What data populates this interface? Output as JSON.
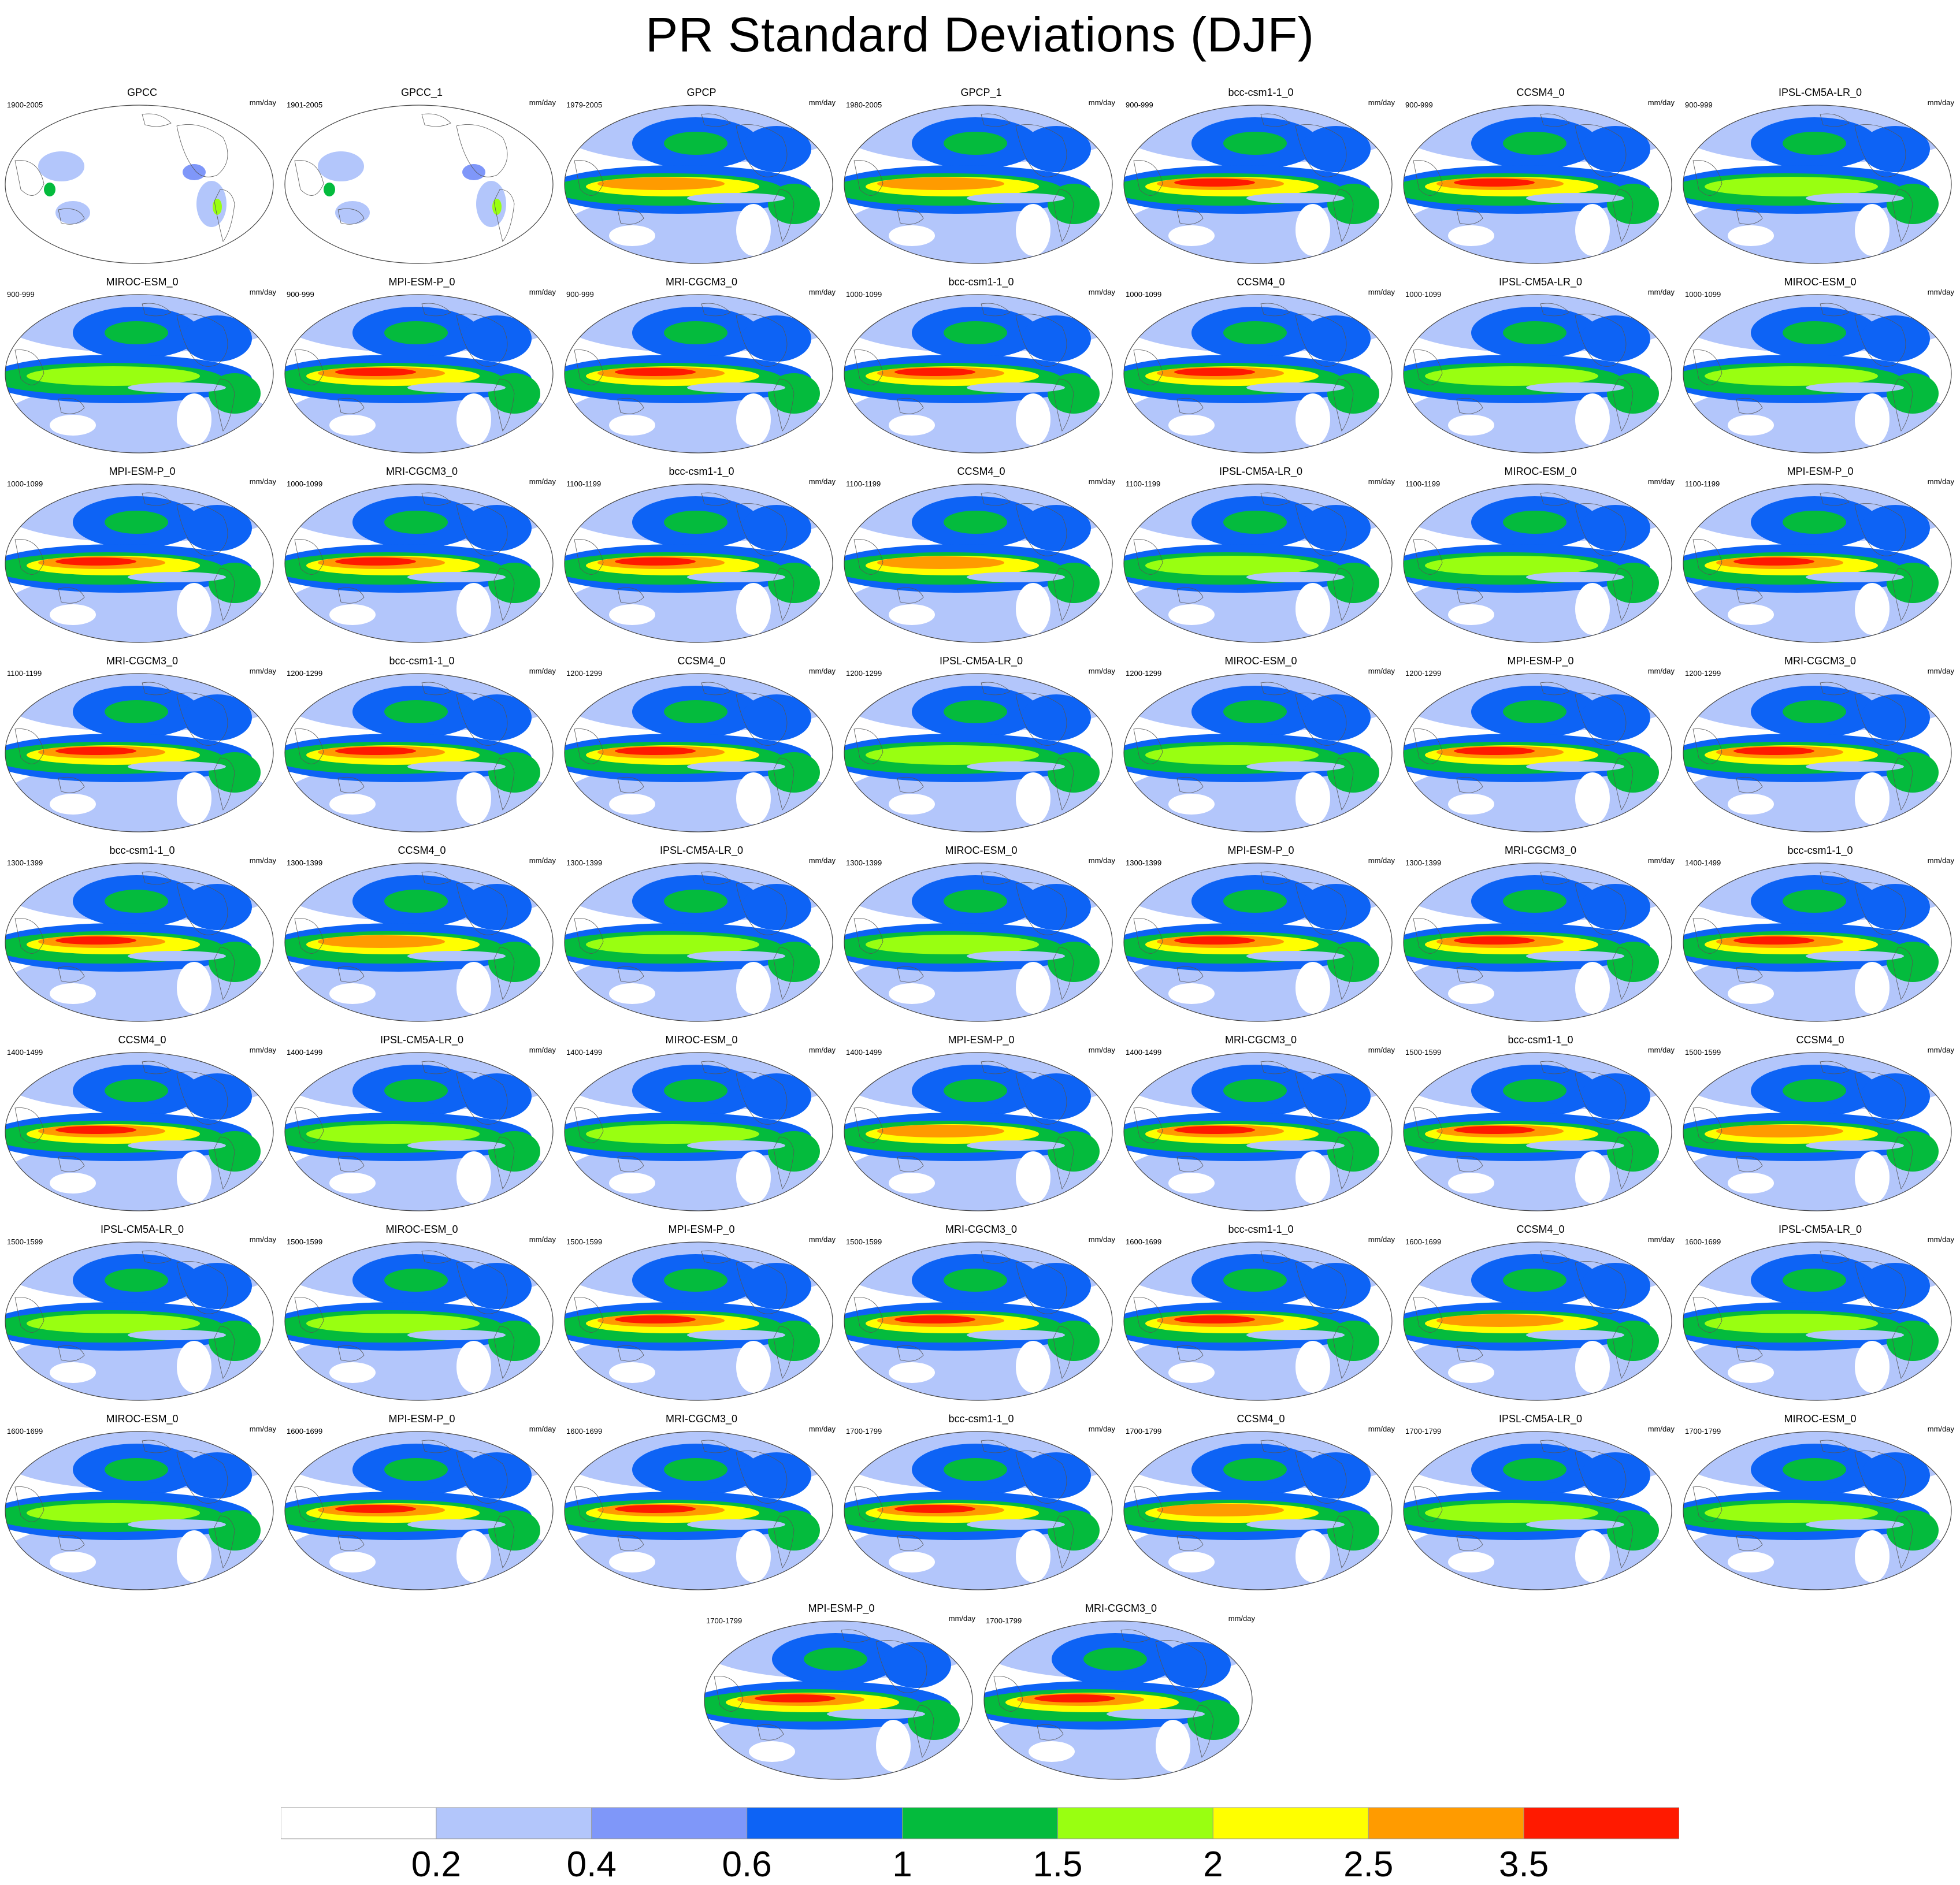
{
  "title": "PR Standard Deviations (DJF)",
  "panels": [
    {
      "name": "GPCC",
      "period": "1900-2005",
      "units": "mm/day",
      "intensity": 0,
      "obs": true
    },
    {
      "name": "GPCC_1",
      "period": "1901-2005",
      "units": "mm/day",
      "intensity": 0,
      "obs": true
    },
    {
      "name": "GPCP",
      "period": "1979-2005",
      "units": "mm/day",
      "intensity": 2
    },
    {
      "name": "GPCP_1",
      "period": "1980-2005",
      "units": "mm/day",
      "intensity": 2
    },
    {
      "name": "bcc-csm1-1_0",
      "period": "900-999",
      "units": "mm/day",
      "intensity": 3
    },
    {
      "name": "CCSM4_0",
      "period": "900-999",
      "units": "mm/day",
      "intensity": 3
    },
    {
      "name": "IPSL-CM5A-LR_0",
      "period": "900-999",
      "units": "mm/day",
      "intensity": 1
    },
    {
      "name": "MIROC-ESM_0",
      "period": "900-999",
      "units": "mm/day",
      "intensity": 1
    },
    {
      "name": "MPI-ESM-P_0",
      "period": "900-999",
      "units": "mm/day",
      "intensity": 3
    },
    {
      "name": "MRI-CGCM3_0",
      "period": "900-999",
      "units": "mm/day",
      "intensity": 3
    },
    {
      "name": "bcc-csm1-1_0",
      "period": "1000-1099",
      "units": "mm/day",
      "intensity": 3
    },
    {
      "name": "CCSM4_0",
      "period": "1000-1099",
      "units": "mm/day",
      "intensity": 3
    },
    {
      "name": "IPSL-CM5A-LR_0",
      "period": "1000-1099",
      "units": "mm/day",
      "intensity": 1
    },
    {
      "name": "MIROC-ESM_0",
      "period": "1000-1099",
      "units": "mm/day",
      "intensity": 1
    },
    {
      "name": "MPI-ESM-P_0",
      "period": "1000-1099",
      "units": "mm/day",
      "intensity": 3
    },
    {
      "name": "MRI-CGCM3_0",
      "period": "1000-1099",
      "units": "mm/day",
      "intensity": 3
    },
    {
      "name": "bcc-csm1-1_0",
      "period": "1100-1199",
      "units": "mm/day",
      "intensity": 3
    },
    {
      "name": "CCSM4_0",
      "period": "1100-1199",
      "units": "mm/day",
      "intensity": 2
    },
    {
      "name": "IPSL-CM5A-LR_0",
      "period": "1100-1199",
      "units": "mm/day",
      "intensity": 1
    },
    {
      "name": "MIROC-ESM_0",
      "period": "1100-1199",
      "units": "mm/day",
      "intensity": 1
    },
    {
      "name": "MPI-ESM-P_0",
      "period": "1100-1199",
      "units": "mm/day",
      "intensity": 3
    },
    {
      "name": "MRI-CGCM3_0",
      "period": "1100-1199",
      "units": "mm/day",
      "intensity": 3
    },
    {
      "name": "bcc-csm1-1_0",
      "period": "1200-1299",
      "units": "mm/day",
      "intensity": 3
    },
    {
      "name": "CCSM4_0",
      "period": "1200-1299",
      "units": "mm/day",
      "intensity": 3
    },
    {
      "name": "IPSL-CM5A-LR_0",
      "period": "1200-1299",
      "units": "mm/day",
      "intensity": 1
    },
    {
      "name": "MIROC-ESM_0",
      "period": "1200-1299",
      "units": "mm/day",
      "intensity": 1
    },
    {
      "name": "MPI-ESM-P_0",
      "period": "1200-1299",
      "units": "mm/day",
      "intensity": 3
    },
    {
      "name": "MRI-CGCM3_0",
      "period": "1200-1299",
      "units": "mm/day",
      "intensity": 3
    },
    {
      "name": "bcc-csm1-1_0",
      "period": "1300-1399",
      "units": "mm/day",
      "intensity": 3
    },
    {
      "name": "CCSM4_0",
      "period": "1300-1399",
      "units": "mm/day",
      "intensity": 2
    },
    {
      "name": "IPSL-CM5A-LR_0",
      "period": "1300-1399",
      "units": "mm/day",
      "intensity": 1
    },
    {
      "name": "MIROC-ESM_0",
      "period": "1300-1399",
      "units": "mm/day",
      "intensity": 1
    },
    {
      "name": "MPI-ESM-P_0",
      "period": "1300-1399",
      "units": "mm/day",
      "intensity": 3
    },
    {
      "name": "MRI-CGCM3_0",
      "period": "1300-1399",
      "units": "mm/day",
      "intensity": 3
    },
    {
      "name": "bcc-csm1-1_0",
      "period": "1400-1499",
      "units": "mm/day",
      "intensity": 3
    },
    {
      "name": "CCSM4_0",
      "period": "1400-1499",
      "units": "mm/day",
      "intensity": 3
    },
    {
      "name": "IPSL-CM5A-LR_0",
      "period": "1400-1499",
      "units": "mm/day",
      "intensity": 1
    },
    {
      "name": "MIROC-ESM_0",
      "period": "1400-1499",
      "units": "mm/day",
      "intensity": 1
    },
    {
      "name": "MPI-ESM-P_0",
      "period": "1400-1499",
      "units": "mm/day",
      "intensity": 2
    },
    {
      "name": "MRI-CGCM3_0",
      "period": "1400-1499",
      "units": "mm/day",
      "intensity": 3
    },
    {
      "name": "bcc-csm1-1_0",
      "period": "1500-1599",
      "units": "mm/day",
      "intensity": 3
    },
    {
      "name": "CCSM4_0",
      "period": "1500-1599",
      "units": "mm/day",
      "intensity": 2
    },
    {
      "name": "IPSL-CM5A-LR_0",
      "period": "1500-1599",
      "units": "mm/day",
      "intensity": 1
    },
    {
      "name": "MIROC-ESM_0",
      "period": "1500-1599",
      "units": "mm/day",
      "intensity": 1
    },
    {
      "name": "MPI-ESM-P_0",
      "period": "1500-1599",
      "units": "mm/day",
      "intensity": 3
    },
    {
      "name": "MRI-CGCM3_0",
      "period": "1500-1599",
      "units": "mm/day",
      "intensity": 3
    },
    {
      "name": "bcc-csm1-1_0",
      "period": "1600-1699",
      "units": "mm/day",
      "intensity": 3
    },
    {
      "name": "CCSM4_0",
      "period": "1600-1699",
      "units": "mm/day",
      "intensity": 2
    },
    {
      "name": "IPSL-CM5A-LR_0",
      "period": "1600-1699",
      "units": "mm/day",
      "intensity": 1
    },
    {
      "name": "MIROC-ESM_0",
      "period": "1600-1699",
      "units": "mm/day",
      "intensity": 1
    },
    {
      "name": "MPI-ESM-P_0",
      "period": "1600-1699",
      "units": "mm/day",
      "intensity": 3
    },
    {
      "name": "MRI-CGCM3_0",
      "period": "1600-1699",
      "units": "mm/day",
      "intensity": 3
    },
    {
      "name": "bcc-csm1-1_0",
      "period": "1700-1799",
      "units": "mm/day",
      "intensity": 3
    },
    {
      "name": "CCSM4_0",
      "period": "1700-1799",
      "units": "mm/day",
      "intensity": 2
    },
    {
      "name": "IPSL-CM5A-LR_0",
      "period": "1700-1799",
      "units": "mm/day",
      "intensity": 1
    },
    {
      "name": "MIROC-ESM_0",
      "period": "1700-1799",
      "units": "mm/day",
      "intensity": 1
    },
    {
      "name": "MPI-ESM-P_0",
      "period": "1700-1799",
      "units": "mm/day",
      "intensity": 3
    },
    {
      "name": "MRI-CGCM3_0",
      "period": "1700-1799",
      "units": "mm/day",
      "intensity": 3
    }
  ],
  "colorbar": {
    "labels": [
      "0.2",
      "0.4",
      "0.6",
      "1",
      "1.5",
      "2",
      "2.5",
      "3.5"
    ],
    "colors": [
      "#ffffff",
      "#b3c6fb",
      "#7f97f9",
      "#0d63f5",
      "#04bb3d",
      "#99ff11",
      "#ffff00",
      "#ff9b00",
      "#ff1a00"
    ]
  },
  "chart_data": {
    "type": "heatmap",
    "title": "PR Standard Deviations (DJF)",
    "units": "mm/day",
    "levels": [
      0.2,
      0.4,
      0.6,
      1,
      1.5,
      2,
      2.5,
      3.5
    ],
    "projection": "Robinson (Pacific-centered)",
    "panel_count": 58
  }
}
